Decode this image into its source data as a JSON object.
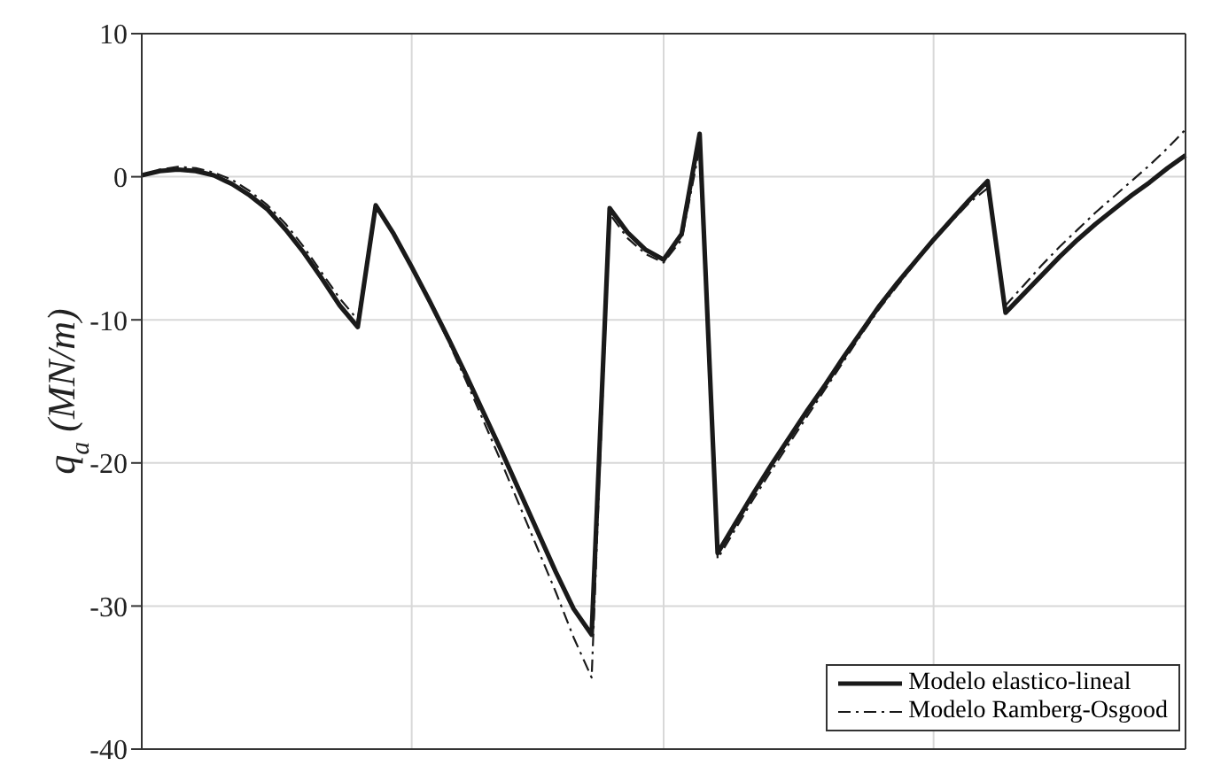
{
  "chart_data": {
    "type": "line",
    "ylabel": "q$_{a}$ (MN/m)",
    "categories": [
      null,
      null,
      null,
      null,
      null,
      null,
      null,
      null,
      null,
      null,
      null,
      null,
      null,
      null,
      null,
      null,
      null,
      null,
      null,
      null,
      null,
      null,
      null,
      null,
      null,
      null,
      null,
      null,
      null,
      null,
      null,
      null,
      null,
      null,
      null,
      null,
      null,
      null,
      null,
      null,
      null,
      null,
      null,
      null,
      null,
      null,
      null,
      null,
      null,
      null,
      null,
      null,
      null,
      null,
      null,
      null,
      null,
      null,
      null
    ],
    "series": [
      {
        "name": "Modelo elastico-lineal",
        "color": "#1a1a1a",
        "line_style": "solid",
        "values": [
          0.1,
          0.4,
          0.5,
          0.4,
          0.1,
          -0.5,
          -1.3,
          -2.3,
          -3.7,
          -5.3,
          -7.1,
          -9.0,
          -10.5,
          -2,
          -4,
          -6.3,
          -8.7,
          -11.2,
          -13.8,
          -16.5,
          -19.2,
          -22,
          -24.8,
          -27.6,
          -30.2,
          -32,
          -2.2,
          -3.9,
          -5.1,
          -5.8,
          -4,
          3,
          -26.3,
          -24.2,
          -22.1,
          -20.1,
          -18.2,
          -16.3,
          -14.5,
          -12.6,
          -10.8,
          -9,
          -7.4,
          -5.9,
          -4.4,
          -3,
          -1.6,
          -0.3,
          -9.5,
          -8.2,
          -6.9,
          -5.6,
          -4.4,
          -3.3,
          -2.3,
          -1.3,
          -0.4,
          0.6,
          1.5
        ]
      },
      {
        "name": "Modelo Ramberg-Osgood",
        "color": "#1a1a1a",
        "line_style": "dashed",
        "values": [
          0.1,
          0.5,
          0.7,
          0.6,
          0.3,
          -0.2,
          -1.0,
          -2.0,
          -3.3,
          -4.9,
          -6.7,
          -8.5,
          -10.0,
          -2,
          -4,
          -6.3,
          -8.8,
          -11.4,
          -14.2,
          -17.1,
          -20,
          -23,
          -26,
          -29,
          -32.2,
          -35,
          -2.6,
          -4.3,
          -5.4,
          -6.0,
          -4.4,
          2,
          -26.7,
          -24.6,
          -22.5,
          -20.5,
          -18.6,
          -16.7,
          -14.8,
          -12.9,
          -11.0,
          -9.2,
          -7.6,
          -6.0,
          -4.5,
          -3.1,
          -1.8,
          -0.8,
          -9.0,
          -7.6,
          -6.2,
          -4.9,
          -3.7,
          -2.5,
          -1.4,
          -0.3,
          0.8,
          2.0,
          3.3
        ]
      }
    ],
    "ylim": [
      -40,
      10
    ],
    "yticks": [
      -40,
      -30,
      -20,
      -10,
      0,
      10
    ],
    "grid": true,
    "legend": "bottom right",
    "marker": "none",
    "tick_labels": "y"
  }
}
